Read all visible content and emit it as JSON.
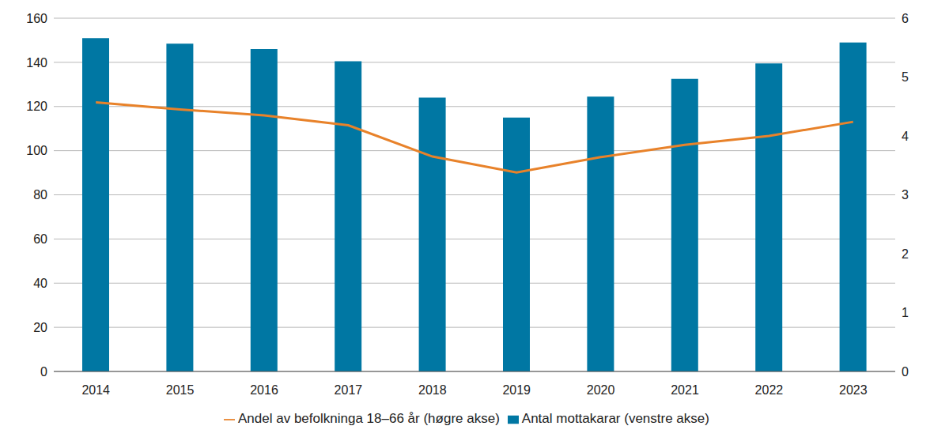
{
  "chart_data": {
    "type": "bar",
    "categories": [
      "2014",
      "2015",
      "2016",
      "2017",
      "2018",
      "2019",
      "2020",
      "2021",
      "2022",
      "2023"
    ],
    "series": [
      {
        "name": "Antal mottakarar (venstre akse)",
        "type": "bar",
        "color": "#0077a3",
        "values": [
          151,
          148.5,
          146,
          140.5,
          124,
          115,
          124.5,
          132.5,
          139.5,
          149
        ]
      },
      {
        "name": "Andel av befolkninga 18–66 år (høgre akse)",
        "type": "line",
        "axis": "y2",
        "color": "#e8822a",
        "values": [
          4.57,
          4.45,
          4.35,
          4.18,
          3.65,
          3.38,
          3.64,
          3.85,
          4.0,
          4.24
        ]
      }
    ],
    "ylim": [
      0,
      160
    ],
    "yticks": [
      0,
      20,
      40,
      60,
      80,
      100,
      120,
      140,
      160
    ],
    "y2lim": [
      0,
      6
    ],
    "y2ticks": [
      0,
      1,
      2,
      3,
      4,
      5,
      6
    ],
    "grid": true,
    "legend": "bottom"
  }
}
